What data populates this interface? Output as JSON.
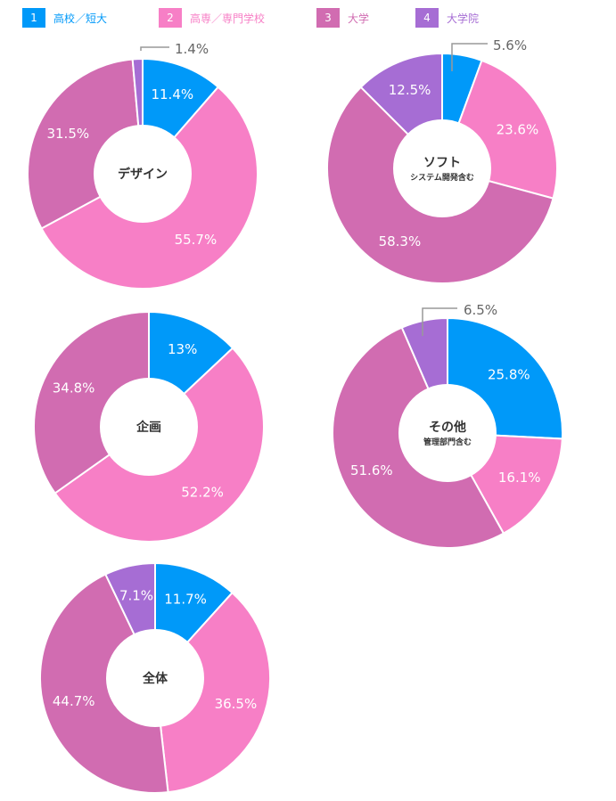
{
  "legend": [
    {
      "num": "1",
      "label": "高校／短大",
      "color": "#0099f9"
    },
    {
      "num": "2",
      "label": "高専／専門学校",
      "color": "#f77fc6"
    },
    {
      "num": "3",
      "label": "大学",
      "color": "#d16cb1"
    },
    {
      "num": "4",
      "label": "大学院",
      "color": "#a66dd4"
    }
  ],
  "chart_data": [
    {
      "type": "pie",
      "title": "デザイン",
      "subtitle": "",
      "categories": [
        "高校／短大",
        "高専／専門学校",
        "大学",
        "大学院"
      ],
      "values": [
        11.4,
        55.7,
        31.5,
        1.4
      ],
      "labels": [
        "11.4%",
        "55.7%",
        "31.5%",
        "1.4%"
      ]
    },
    {
      "type": "pie",
      "title": "ソフト",
      "subtitle": "システム開発含む",
      "categories": [
        "高校／短大",
        "高専／専門学校",
        "大学",
        "大学院"
      ],
      "values": [
        5.6,
        23.6,
        58.3,
        12.5
      ],
      "labels": [
        "5.6%",
        "23.6%",
        "58.3%",
        "12.5%"
      ]
    },
    {
      "type": "pie",
      "title": "企画",
      "subtitle": "",
      "categories": [
        "高校／短大",
        "高専／専門学校",
        "大学",
        "大学院"
      ],
      "values": [
        13,
        52.2,
        34.8,
        0
      ],
      "labels": [
        "13%",
        "52.2%",
        "34.8%",
        ""
      ]
    },
    {
      "type": "pie",
      "title": "その他",
      "subtitle": "管理部門含む",
      "categories": [
        "高校／短大",
        "高専／専門学校",
        "大学",
        "大学院"
      ],
      "values": [
        25.8,
        16.1,
        51.6,
        6.5
      ],
      "labels": [
        "25.8%",
        "16.1%",
        "51.6%",
        "6.5%"
      ]
    },
    {
      "type": "pie",
      "title": "全体",
      "subtitle": "",
      "categories": [
        "高校／短大",
        "高専／専門学校",
        "大学",
        "大学院"
      ],
      "values": [
        11.7,
        36.5,
        44.7,
        7.1
      ],
      "labels": [
        "11.7%",
        "36.5%",
        "44.7%",
        "7.1%"
      ]
    }
  ]
}
